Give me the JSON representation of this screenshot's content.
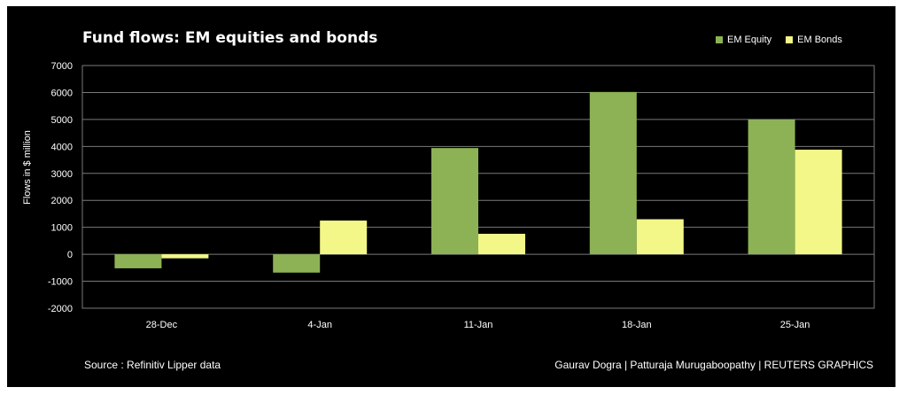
{
  "chart_data": {
    "type": "bar",
    "title": "Fund flows: EM equities and bonds",
    "ylabel": "Flows in $ million",
    "xlabel": "",
    "categories": [
      "28-Dec",
      "4-Jan",
      "11-Jan",
      "18-Jan",
      "25-Jan"
    ],
    "series": [
      {
        "name": "EM Equity",
        "color": "#8db255",
        "values": [
          -520,
          -680,
          3940,
          6020,
          5000
        ]
      },
      {
        "name": "EM Bonds",
        "color": "#f2f787",
        "values": [
          -150,
          1250,
          760,
          1300,
          3880
        ]
      }
    ],
    "ylim": [
      -2000,
      7000
    ],
    "yticks": [
      -2000,
      -1000,
      0,
      1000,
      2000,
      3000,
      4000,
      5000,
      6000,
      7000
    ],
    "ytick_labels": [
      "-2000",
      "-1000",
      "0",
      "1000",
      "2000",
      "3000",
      "4000",
      "5000",
      "6000",
      "7000"
    ],
    "grid": true,
    "legend_position": "top-right"
  },
  "footer": {
    "source": "Source : Refinitiv Lipper data",
    "credit": "Gaurav Dogra | Patturaja Murugaboopathy | REUTERS GRAPHICS"
  }
}
